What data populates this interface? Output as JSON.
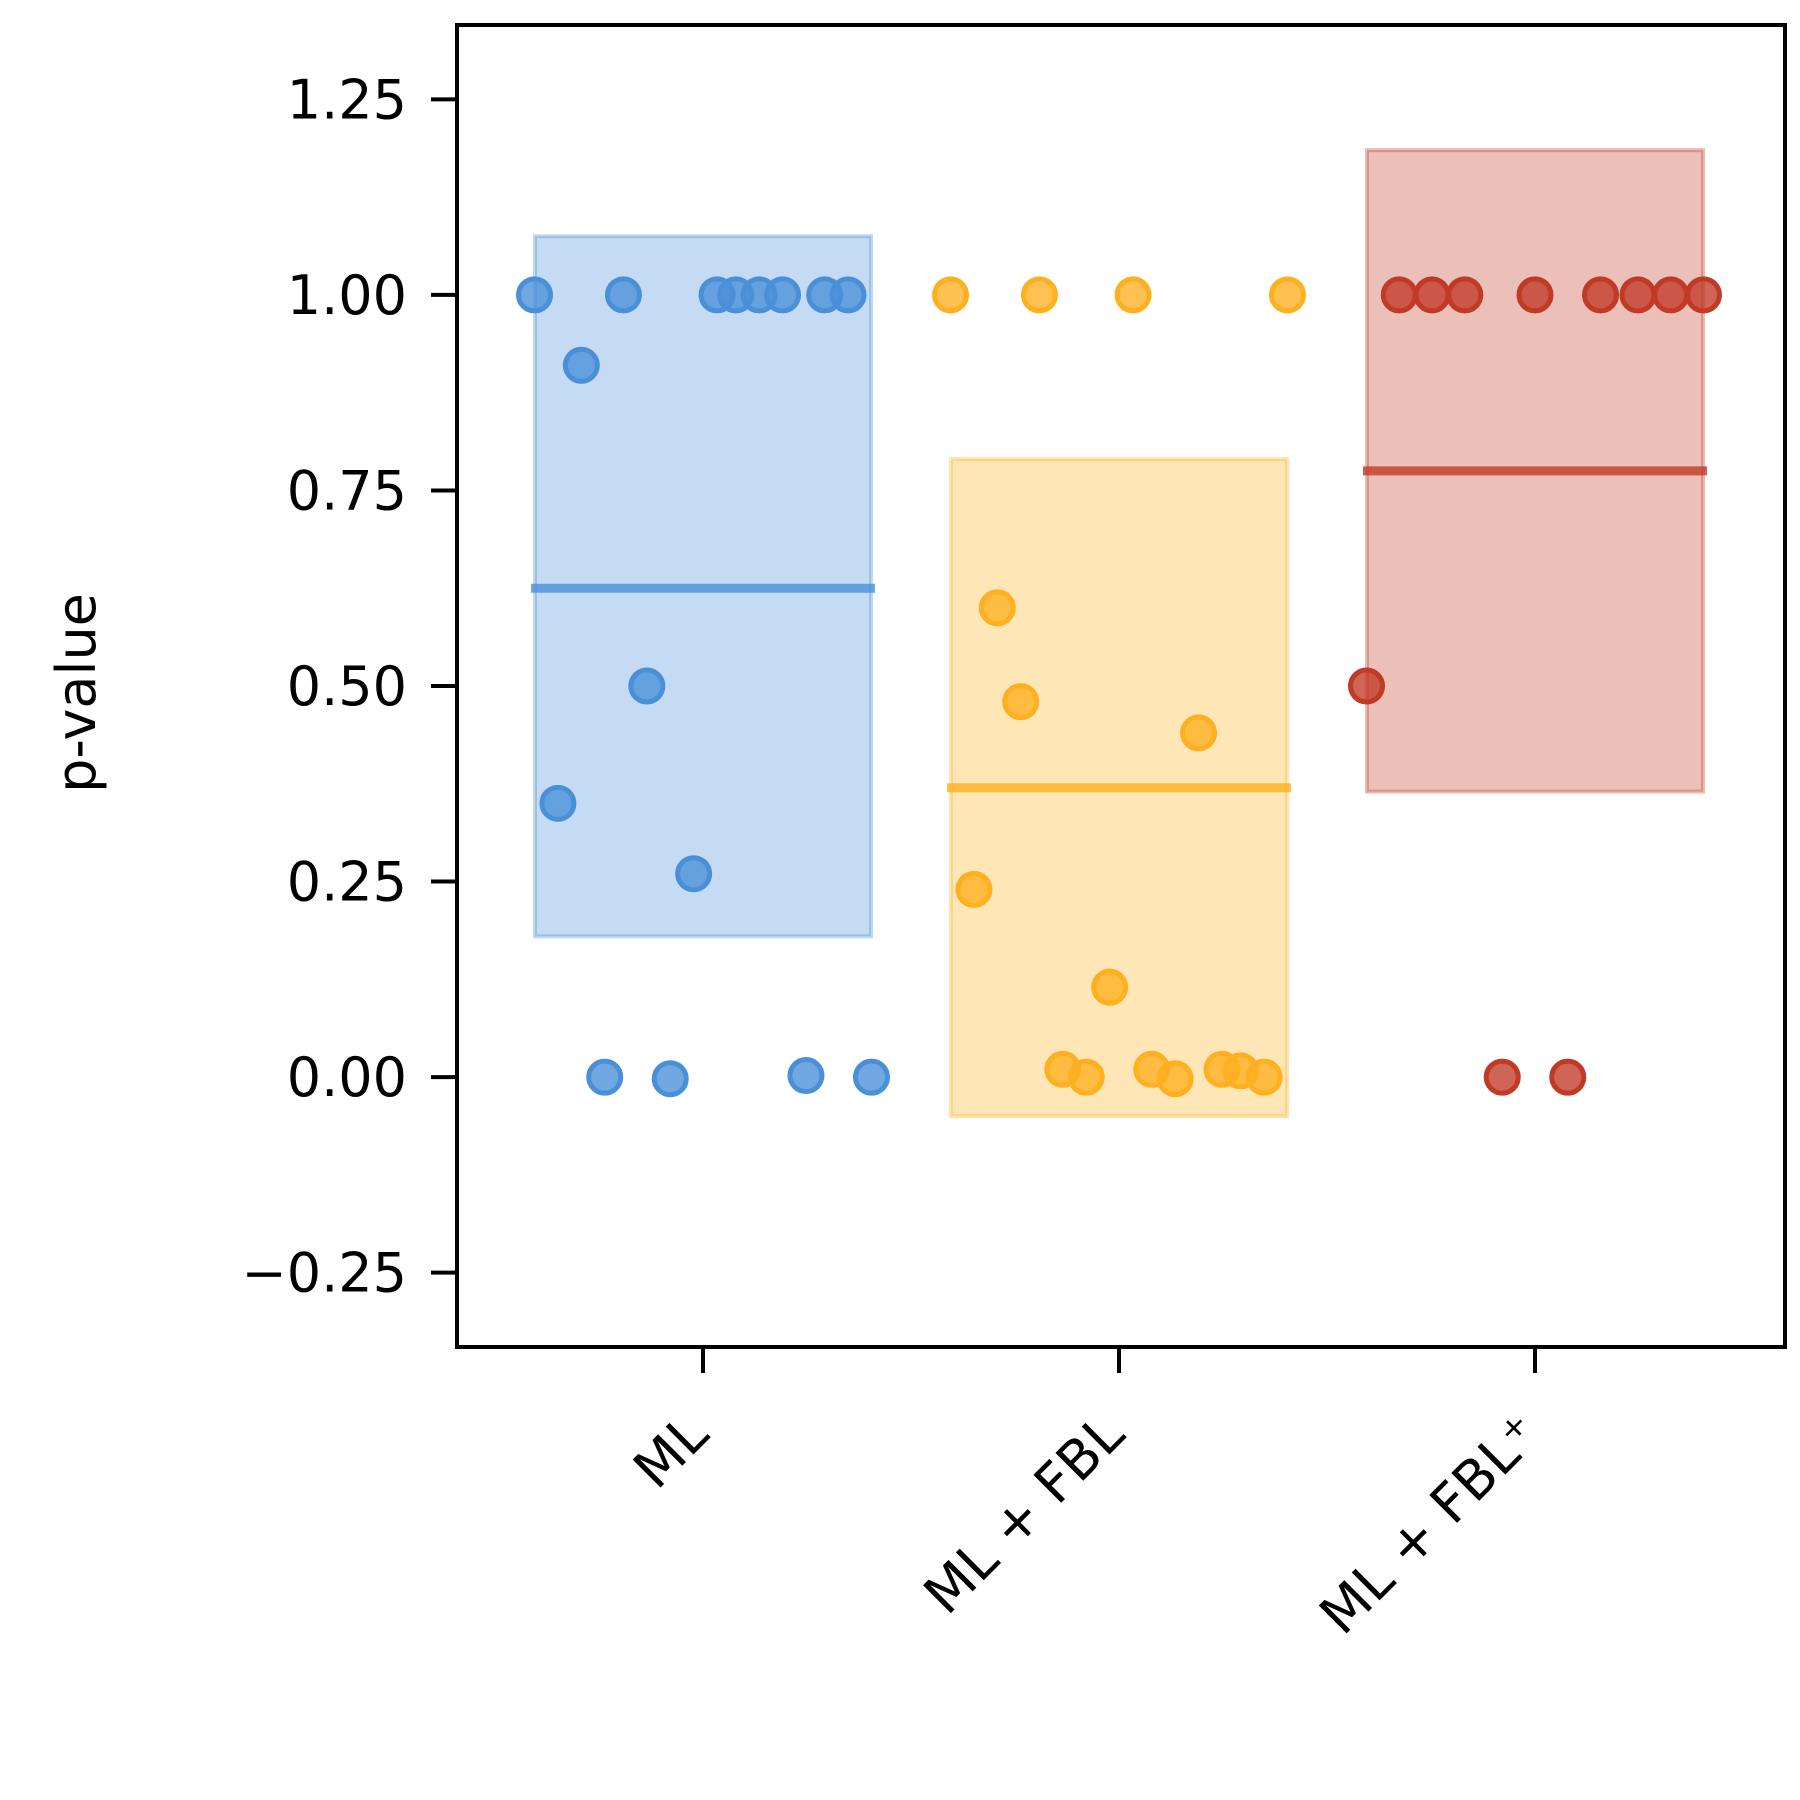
{
  "chart_data": {
    "type": "scatter",
    "ylabel": "p-value",
    "xlabel": "",
    "ylim": [
      -0.345,
      1.345
    ],
    "yticks": [
      -0.25,
      0.0,
      0.25,
      0.5,
      0.75,
      1.0,
      1.25
    ],
    "ytick_labels": [
      "−0.25",
      "0.00",
      "0.25",
      "0.50",
      "0.75",
      "1.00",
      "1.25"
    ],
    "categories": [
      "ML",
      "ML + FBL",
      "ML + FBL⁺"
    ],
    "grid": false,
    "series": [
      {
        "color": "#4a90d9",
        "mean": 0.625,
        "band": [
          0.18,
          1.075
        ],
        "points": [
          {
            "x": -0.36,
            "y": 1.0
          },
          {
            "x": -0.26,
            "y": 0.91
          },
          {
            "x": -0.17,
            "y": 1.0
          },
          {
            "x": 0.03,
            "y": 1.0
          },
          {
            "x": 0.07,
            "y": 1.0
          },
          {
            "x": 0.12,
            "y": 1.0
          },
          {
            "x": 0.17,
            "y": 1.0
          },
          {
            "x": 0.26,
            "y": 1.0
          },
          {
            "x": 0.31,
            "y": 1.0
          },
          {
            "x": -0.31,
            "y": 0.35
          },
          {
            "x": -0.12,
            "y": 0.5
          },
          {
            "x": -0.02,
            "y": 0.26
          },
          {
            "x": -0.21,
            "y": 0.0
          },
          {
            "x": -0.07,
            "y": -0.002
          },
          {
            "x": 0.22,
            "y": 0.002
          },
          {
            "x": 0.36,
            "y": 0.0
          }
        ]
      },
      {
        "color": "#ffb020",
        "mean": 0.37,
        "band": [
          -0.05,
          0.79
        ],
        "points": [
          {
            "x": -0.36,
            "y": 1.0
          },
          {
            "x": -0.17,
            "y": 1.0
          },
          {
            "x": 0.03,
            "y": 1.0
          },
          {
            "x": 0.36,
            "y": 1.0
          },
          {
            "x": -0.26,
            "y": 0.6
          },
          {
            "x": -0.21,
            "y": 0.48
          },
          {
            "x": 0.17,
            "y": 0.44
          },
          {
            "x": -0.31,
            "y": 0.24
          },
          {
            "x": -0.02,
            "y": 0.115
          },
          {
            "x": -0.12,
            "y": 0.01
          },
          {
            "x": -0.07,
            "y": 0.0
          },
          {
            "x": 0.07,
            "y": 0.01
          },
          {
            "x": 0.12,
            "y": -0.002
          },
          {
            "x": 0.22,
            "y": 0.01
          },
          {
            "x": 0.26,
            "y": 0.008
          },
          {
            "x": 0.31,
            "y": 0.0
          }
        ]
      },
      {
        "color": "#c03a26",
        "mean": 0.775,
        "band": [
          0.365,
          1.185
        ],
        "points": [
          {
            "x": -0.36,
            "y": 0.5
          },
          {
            "x": -0.29,
            "y": 1.0
          },
          {
            "x": -0.22,
            "y": 1.0
          },
          {
            "x": -0.15,
            "y": 1.0
          },
          {
            "x": 0.0,
            "y": 1.0
          },
          {
            "x": 0.14,
            "y": 1.0
          },
          {
            "x": 0.22,
            "y": 1.0
          },
          {
            "x": 0.29,
            "y": 1.0
          },
          {
            "x": 0.36,
            "y": 1.0
          },
          {
            "x": -0.07,
            "y": 0.0
          },
          {
            "x": 0.07,
            "y": 0.0
          }
        ]
      }
    ]
  }
}
